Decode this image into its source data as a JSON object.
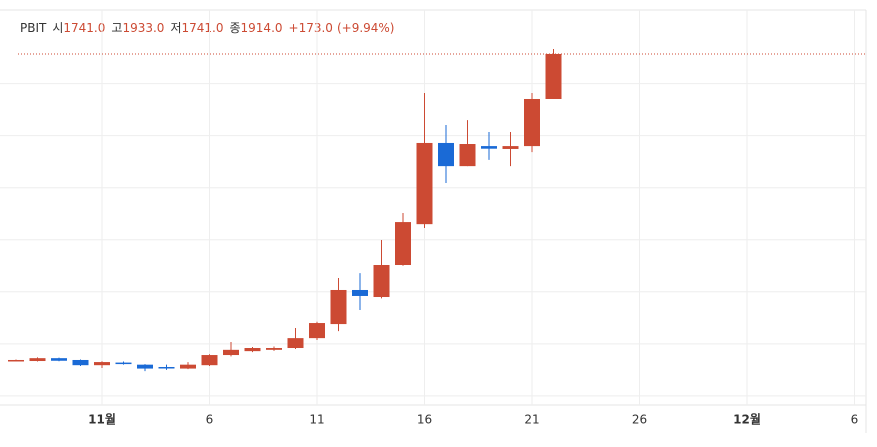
{
  "chart_data": {
    "type": "candlestick",
    "legend": {
      "symbol": "PBIT",
      "items": [
        {
          "label": "시",
          "value": "1741.0"
        },
        {
          "label": "고",
          "value": "1933.0"
        },
        {
          "label": "저",
          "value": "1741.0"
        },
        {
          "label": "종",
          "value": "1914.0"
        }
      ],
      "change": "+173.0",
      "change_pct": "(+9.94%)"
    },
    "x": [
      "10-28",
      "10-29",
      "10-30",
      "10-31",
      "11-01",
      "11-02",
      "11-03",
      "11-04",
      "11-05",
      "11-06",
      "11-07",
      "11-08",
      "11-09",
      "11-10",
      "11-11",
      "11-12",
      "11-13",
      "11-14",
      "11-15",
      "11-16",
      "11-17",
      "11-18",
      "11-19",
      "11-20",
      "11-21",
      "11-22"
    ],
    "open": [
      735,
      734,
      745,
      738,
      718,
      728,
      720,
      711,
      705,
      718,
      757,
      772,
      777,
      784,
      822,
      876,
      1007,
      980,
      1103,
      1260,
      1572,
      1483,
      1560,
      1549,
      1560,
      1741
    ],
    "high": [
      740,
      748,
      747,
      740,
      733,
      732,
      722,
      720,
      730,
      760,
      807,
      788,
      790,
      861,
      885,
      1053,
      1072,
      1199,
      1303,
      1764,
      1641,
      1660,
      1614,
      1614,
      1764,
      1933
    ],
    "low": [
      733,
      732,
      733,
      715,
      707,
      720,
      695,
      700,
      703,
      715,
      752,
      768,
      773,
      780,
      815,
      849,
      930,
      975,
      1100,
      1245,
      1418,
      1483,
      1507,
      1483,
      1537,
      1741
    ],
    "close": [
      738,
      745,
      735,
      718,
      730,
      724,
      705,
      707,
      720,
      757,
      777,
      784,
      784,
      822,
      880,
      1007,
      984,
      1103,
      1268,
      1572,
      1483,
      1568,
      1550,
      1560,
      1741,
      1914
    ],
    "up_color": "#cc4a33",
    "down_color": "#1a6ad6",
    "ylim": [
      565,
      2083
    ],
    "ygrid": [
      600,
      800,
      1000,
      1200,
      1400,
      1600,
      1800
    ],
    "xticks": [
      {
        "value": "11-01",
        "label": "11월"
      },
      {
        "value": "11-06",
        "label": "6"
      },
      {
        "value": "11-11",
        "label": "11"
      },
      {
        "value": "11-16",
        "label": "16"
      },
      {
        "value": "11-21",
        "label": "21"
      },
      {
        "value": "11-26",
        "label": "26"
      },
      {
        "value": "12-01",
        "label": "12월"
      },
      {
        "value": "12-06",
        "label": "6"
      }
    ],
    "last_price_line": true
  }
}
